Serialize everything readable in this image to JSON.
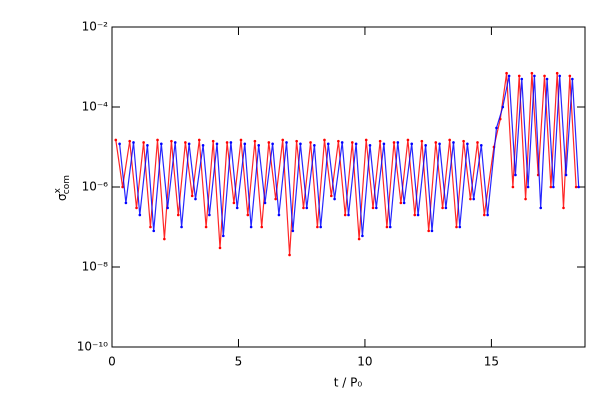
{
  "chart_data": {
    "type": "scatter",
    "x_label": "t / P₀",
    "y_label": {
      "symbol": "σ",
      "superscript": "x",
      "subscript": "com"
    },
    "xlim": [
      0,
      18.7
    ],
    "xticks": [
      0,
      5,
      10,
      15
    ],
    "ylim": [
      1e-10,
      0.01
    ],
    "log_y": true,
    "yticks": [
      {
        "value": 1e-10,
        "label": "10⁻¹⁰"
      },
      {
        "value": 1e-08,
        "label": "10⁻⁸"
      },
      {
        "value": 1e-06,
        "label": "10⁻⁶"
      },
      {
        "value": 0.0001,
        "label": "10⁻⁴"
      },
      {
        "value": 0.01,
        "label": "10⁻²"
      }
    ],
    "series": [
      {
        "color": "#ff0000",
        "x": [
          0.15,
          0.42,
          0.7,
          0.97,
          1.25,
          1.52,
          1.8,
          2.07,
          2.35,
          2.62,
          2.9,
          3.17,
          3.45,
          3.72,
          4.0,
          4.27,
          4.55,
          4.82,
          5.1,
          5.37,
          5.65,
          5.92,
          6.2,
          6.47,
          6.75,
          7.02,
          7.3,
          7.57,
          7.85,
          8.12,
          8.4,
          8.67,
          8.95,
          9.22,
          9.5,
          9.77,
          10.05,
          10.32,
          10.6,
          10.87,
          11.15,
          11.42,
          11.7,
          11.97,
          12.25,
          12.52,
          12.8,
          13.07,
          13.35,
          13.62,
          13.9,
          14.17,
          14.45,
          14.72,
          15.1,
          15.35,
          15.6,
          15.85,
          16.1,
          16.35,
          16.6,
          16.85,
          17.1,
          17.35,
          17.6,
          17.85,
          18.1,
          18.35
        ],
        "values": [
          1.5e-05,
          1e-06,
          1.4e-05,
          3e-07,
          1.3e-05,
          1e-07,
          1.5e-05,
          5e-08,
          1.4e-05,
          2e-07,
          1.3e-05,
          6e-07,
          1.5e-05,
          1e-07,
          1.4e-05,
          3e-08,
          1.3e-05,
          4e-07,
          1.5e-05,
          2e-07,
          1.4e-05,
          1e-07,
          1.3e-05,
          5e-07,
          1.5e-05,
          2e-08,
          1.4e-05,
          3e-07,
          1.3e-05,
          1e-07,
          1.5e-05,
          6e-07,
          1.4e-05,
          2e-07,
          1.3e-05,
          5e-08,
          1.5e-05,
          3e-07,
          1.4e-05,
          1e-07,
          1.3e-05,
          4e-07,
          1.5e-05,
          2e-07,
          1.4e-05,
          8e-08,
          1.3e-05,
          3e-07,
          1.5e-05,
          1e-07,
          1.4e-05,
          5e-07,
          1.3e-05,
          2e-07,
          1e-05,
          5e-05,
          0.0007,
          1e-06,
          0.0006,
          5e-07,
          0.0007,
          2e-06,
          0.0006,
          1e-06,
          0.0007,
          3e-07,
          0.0006,
          1e-06
        ]
      },
      {
        "color": "#0000ff",
        "x": [
          0.3,
          0.55,
          0.85,
          1.1,
          1.4,
          1.65,
          1.95,
          2.2,
          2.5,
          2.75,
          3.05,
          3.3,
          3.6,
          3.85,
          4.15,
          4.4,
          4.7,
          4.95,
          5.25,
          5.5,
          5.8,
          6.05,
          6.35,
          6.6,
          6.9,
          7.15,
          7.45,
          7.7,
          8.0,
          8.25,
          8.55,
          8.8,
          9.1,
          9.35,
          9.65,
          9.9,
          10.2,
          10.45,
          10.75,
          11.0,
          11.3,
          11.55,
          11.85,
          12.1,
          12.4,
          12.65,
          12.95,
          13.2,
          13.5,
          13.75,
          14.05,
          14.3,
          14.6,
          14.85,
          15.2,
          15.45,
          15.7,
          15.95,
          16.2,
          16.45,
          16.7,
          16.95,
          17.2,
          17.45,
          17.7,
          17.95,
          18.2,
          18.45
        ],
        "values": [
          1.2e-05,
          4e-07,
          1.3e-05,
          2e-07,
          1.1e-05,
          8e-08,
          1.2e-05,
          3e-07,
          1.3e-05,
          1e-07,
          1.2e-05,
          5e-07,
          1.1e-05,
          2e-07,
          1.2e-05,
          6e-08,
          1.3e-05,
          3e-07,
          1.2e-05,
          1e-07,
          1.1e-05,
          4e-07,
          1.2e-05,
          2e-07,
          1.3e-05,
          8e-08,
          1.2e-05,
          3e-07,
          1.1e-05,
          1e-07,
          1.2e-05,
          5e-07,
          1.3e-05,
          2e-07,
          1.2e-05,
          6e-08,
          1.1e-05,
          3e-07,
          1.2e-05,
          1e-07,
          1.3e-05,
          4e-07,
          1.2e-05,
          2e-07,
          1.1e-05,
          8e-08,
          1.2e-05,
          3e-07,
          1.3e-05,
          1e-07,
          1.2e-05,
          5e-07,
          1.1e-05,
          2e-07,
          3e-05,
          0.0001,
          0.0006,
          2e-06,
          0.0005,
          1e-06,
          0.0006,
          3e-07,
          0.0005,
          1e-06,
          0.0006,
          2e-06,
          0.0005,
          1e-06
        ]
      }
    ]
  }
}
